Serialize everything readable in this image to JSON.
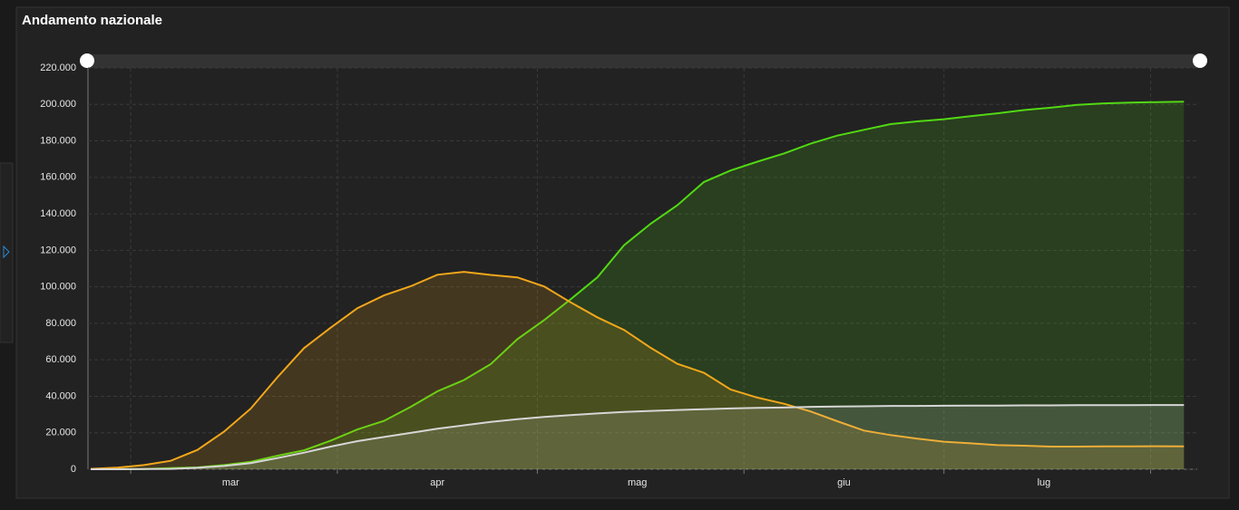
{
  "chart_data": {
    "type": "area",
    "title": "Andamento nazionale",
    "x": [
      0,
      4,
      8,
      12,
      16,
      20,
      24,
      28,
      32,
      36,
      40,
      44,
      48,
      52,
      56,
      60,
      64,
      68,
      72,
      76,
      80,
      84,
      88,
      92,
      96,
      100,
      104,
      108,
      112,
      116,
      120,
      124,
      128,
      132,
      136,
      140,
      144,
      148,
      152,
      156,
      160,
      164
    ],
    "xlim": [
      0,
      166
    ],
    "xticks": [
      {
        "value": 21,
        "label": "mar"
      },
      {
        "value": 52,
        "label": "apr"
      },
      {
        "value": 82,
        "label": "mag"
      },
      {
        "value": 113,
        "label": "giu"
      },
      {
        "value": 143,
        "label": "lug"
      }
    ],
    "xgrid": [
      6,
      37,
      67,
      98,
      128,
      159
    ],
    "ylim": [
      0,
      220000
    ],
    "yticks": [
      0,
      {
        "value": 20000,
        "label": "20.000"
      },
      {
        "value": 40000,
        "label": "40.000"
      },
      {
        "value": 60000,
        "label": "60.000"
      },
      {
        "value": 80000,
        "label": "80.000"
      },
      {
        "value": 100000,
        "label": "100.000"
      },
      {
        "value": 120000,
        "label": "120.000"
      },
      {
        "value": 140000,
        "label": "140.000"
      },
      {
        "value": 160000,
        "label": "160.000"
      },
      {
        "value": 180000,
        "label": "180.000"
      },
      {
        "value": 200000,
        "label": "200.000"
      },
      {
        "value": 220000,
        "label": "220.000"
      }
    ],
    "grid": true,
    "series": [
      {
        "color": "#52d814",
        "values": [
          0,
          50,
          160,
          590,
          1000,
          2300,
          4000,
          7400,
          10400,
          15700,
          21800,
          26500,
          34200,
          42700,
          48900,
          57600,
          71300,
          81700,
          93200,
          105200,
          122800,
          134600,
          144700,
          157500,
          163800,
          168600,
          173100,
          178500,
          182900,
          186100,
          189200,
          190700,
          191900,
          193600,
          195100,
          196900,
          198200,
          199800,
          200600,
          201000,
          201300,
          201500
        ]
      },
      {
        "color": "#f2a71b",
        "values": [
          200,
          900,
          2300,
          4600,
          10600,
          20600,
          33200,
          50400,
          66400,
          77600,
          88300,
          95300,
          100300,
          106600,
          108200,
          106500,
          105200,
          100200,
          91500,
          83300,
          76400,
          66600,
          57800,
          52900,
          43700,
          39300,
          35900,
          31700,
          26300,
          21200,
          18700,
          16800,
          15100,
          14200,
          13200,
          12900,
          12400,
          12400,
          12500,
          12500,
          12600,
          12500
        ]
      },
      {
        "color": "#d6d6d6",
        "values": [
          0,
          20,
          80,
          200,
          800,
          1800,
          3400,
          6100,
          9100,
          12400,
          15400,
          17700,
          19900,
          22200,
          24100,
          25900,
          27400,
          28700,
          29700,
          30600,
          31400,
          32000,
          32500,
          32900,
          33300,
          33600,
          33800,
          34200,
          34400,
          34500,
          34700,
          34700,
          34800,
          34900,
          34900,
          35000,
          35000,
          35100,
          35100,
          35100,
          35200,
          35200
        ]
      }
    ]
  }
}
